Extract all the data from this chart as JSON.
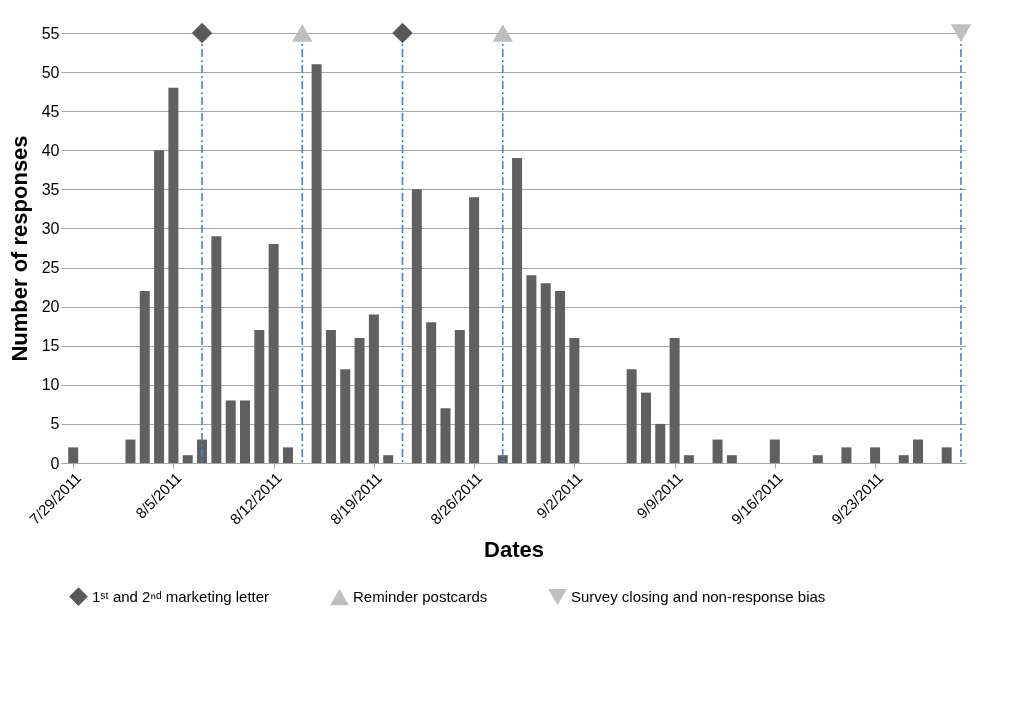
{
  "chart_data": {
    "type": "bar",
    "xlabel": "Dates",
    "ylabel": "Number of responses",
    "xlim": [
      "2011-07-28T12:00",
      "2011-09-29"
    ],
    "xticks": [
      {
        "value": "2011-07-29",
        "label": "7/29/2011"
      },
      {
        "value": "2011-08-05",
        "label": "8/5/2011"
      },
      {
        "value": "2011-08-12",
        "label": "8/12/2011"
      },
      {
        "value": "2011-08-19",
        "label": "8/19/2011"
      },
      {
        "value": "2011-08-26",
        "label": "8/26/2011"
      },
      {
        "value": "2011-09-02",
        "label": "9/2/2011"
      },
      {
        "value": "2011-09-09",
        "label": "9/9/2011"
      },
      {
        "value": "2011-09-16",
        "label": "9/16/2011"
      },
      {
        "value": "2011-09-23",
        "label": "9/23/2011"
      }
    ],
    "ylim": [
      0,
      55
    ],
    "yticks": [
      0,
      5,
      10,
      15,
      20,
      25,
      30,
      35,
      40,
      45,
      50,
      55
    ],
    "grid": "y",
    "legend": "bottom",
    "series": [
      {
        "color": "#606060",
        "x": [
          "2011-07-29",
          "2011-08-02",
          "2011-08-03",
          "2011-08-04",
          "2011-08-05",
          "2011-08-06",
          "2011-08-07",
          "2011-08-08",
          "2011-08-09",
          "2011-08-10",
          "2011-08-11",
          "2011-08-12",
          "2011-08-13",
          "2011-08-15",
          "2011-08-16",
          "2011-08-17",
          "2011-08-18",
          "2011-08-19",
          "2011-08-20",
          "2011-08-22",
          "2011-08-23",
          "2011-08-24",
          "2011-08-25",
          "2011-08-26",
          "2011-08-28",
          "2011-08-29",
          "2011-08-30",
          "2011-08-31",
          "2011-09-01",
          "2011-09-02",
          "2011-09-06",
          "2011-09-07",
          "2011-09-08",
          "2011-09-09",
          "2011-09-10",
          "2011-09-12",
          "2011-09-13",
          "2011-09-16",
          "2011-09-19",
          "2011-09-21",
          "2011-09-23",
          "2011-09-25",
          "2011-09-26",
          "2011-09-28"
        ],
        "values": [
          2,
          3,
          22,
          40,
          48,
          1,
          3,
          29,
          8,
          8,
          17,
          28,
          2,
          51,
          17,
          12,
          16,
          19,
          1,
          35,
          18,
          7,
          17,
          34,
          1,
          39,
          24,
          23,
          22,
          16,
          12,
          9,
          5,
          16,
          1,
          3,
          1,
          3,
          1,
          2,
          2,
          1,
          3,
          2
        ]
      },
      {
        "type": "scatter",
        "name": "1ˢᵗ and 2ⁿᵈ marketing letter",
        "color": "#595959",
        "marker": "diamond",
        "x": [
          "2011-08-07",
          "2011-08-21"
        ],
        "values": [
          55,
          55
        ]
      },
      {
        "type": "scatter",
        "name": "Reminder postcards",
        "color": "#bfbfbf",
        "marker": "triangle",
        "x": [
          "2011-08-14",
          "2011-08-28"
        ],
        "values": [
          55,
          55
        ]
      },
      {
        "type": "scatter",
        "name": "Survey closing and non-response bias",
        "color": "#bfbfbf",
        "marker": "triangle-down",
        "x": [
          "2011-09-29"
        ],
        "values": [
          55
        ]
      }
    ],
    "ref_lines": [
      {
        "axis": "x",
        "value": "2011-08-07",
        "color": "#4f81bd",
        "line_style": "dashed"
      },
      {
        "axis": "x",
        "value": "2011-08-14",
        "color": "#4f81bd",
        "line_style": "dashed"
      },
      {
        "axis": "x",
        "value": "2011-08-21",
        "color": "#4f81bd",
        "line_style": "dashed"
      },
      {
        "axis": "x",
        "value": "2011-08-28",
        "color": "#4f81bd",
        "line_style": "dashed"
      },
      {
        "axis": "x",
        "value": "2011-09-29",
        "color": "#4f81bd",
        "line_style": "dashed"
      }
    ]
  }
}
